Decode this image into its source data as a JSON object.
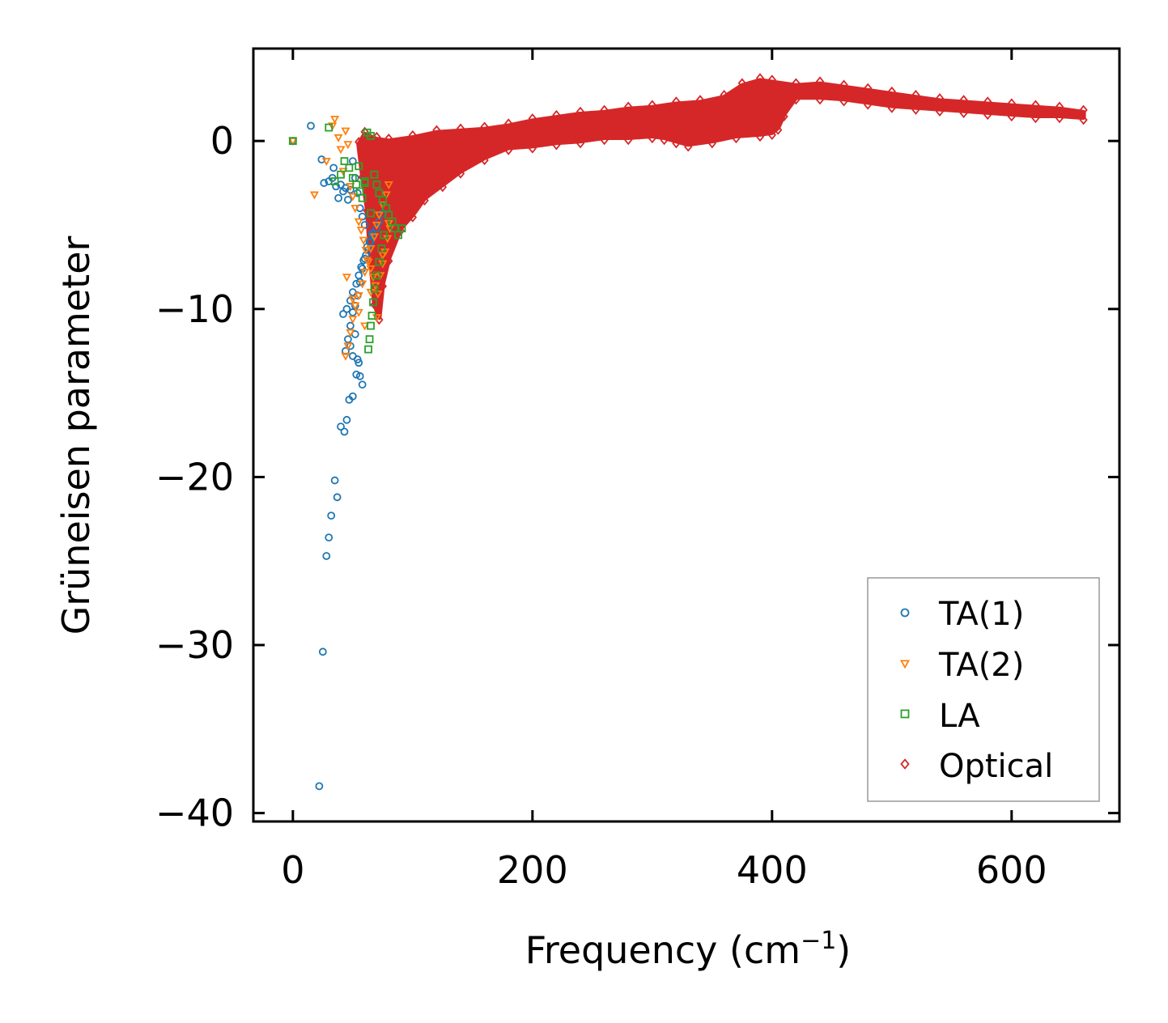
{
  "chart_data": {
    "type": "scatter",
    "title": "",
    "xlabel": "Frequency (cm",
    "xlabel_sup": "−1",
    "xlabel_end": ")",
    "ylabel": "Grüneisen parameter",
    "xlim": [
      -33,
      690
    ],
    "ylim": [
      -40.5,
      5.5
    ],
    "xticks": [
      0,
      200,
      400,
      600
    ],
    "xtick_labels": [
      "0",
      "200",
      "400",
      "600"
    ],
    "yticks": [
      0,
      -10,
      -20,
      -30,
      -40
    ],
    "ytick_labels": [
      "0",
      "−10",
      "−20",
      "−30",
      "−40"
    ],
    "legend_position": "lower-right",
    "series": [
      {
        "name": "TA(1)",
        "marker": "circle",
        "color": "#1f77b4",
        "x": [
          0,
          15,
          24,
          26,
          30,
          33,
          34,
          36,
          38,
          40,
          42,
          44,
          46,
          48,
          50,
          52,
          54,
          56,
          58,
          60,
          22,
          25,
          28,
          30,
          32,
          35,
          37,
          40,
          43,
          45,
          47,
          50,
          53,
          55,
          58,
          44,
          46,
          48,
          50,
          52,
          54,
          56,
          58,
          60,
          62,
          64,
          66,
          42,
          45,
          48,
          50,
          53,
          55,
          57,
          59,
          61,
          63,
          65,
          67,
          70,
          72,
          75,
          48,
          50,
          52,
          54,
          56
        ],
        "y": [
          0,
          0.9,
          -1.1,
          -2.5,
          -2.4,
          -2.2,
          -1.6,
          -2.7,
          -3.4,
          -2.6,
          -3.0,
          -2.8,
          -3.5,
          -2.9,
          -1.2,
          -2.2,
          -3.1,
          -4.0,
          -4.5,
          -5.0,
          -38.4,
          -30.4,
          -24.7,
          -23.6,
          -22.3,
          -20.2,
          -21.2,
          -17.0,
          -17.3,
          -16.6,
          -15.4,
          -15.2,
          -13.9,
          -13.2,
          -14.5,
          -12.5,
          -11.8,
          -11.0,
          -10.2,
          -9.8,
          -9.2,
          -8.4,
          -7.6,
          -7.0,
          -6.3,
          -6.0,
          -5.5,
          -10.3,
          -10.0,
          -9.5,
          -9.0,
          -8.5,
          -8.0,
          -7.5,
          -7.1,
          -6.8,
          -6.5,
          -6.0,
          -5.6,
          -5.2,
          -4.8,
          -4.3,
          -12.2,
          -12.8,
          -11.5,
          -13.0,
          -14.0
        ]
      },
      {
        "name": "TA(2)",
        "marker": "triangle-down",
        "color": "#ff7f0e",
        "x": [
          0,
          18,
          28,
          33,
          35,
          38,
          40,
          42,
          44,
          46,
          48,
          50,
          52,
          55,
          57,
          59,
          61,
          63,
          65,
          67,
          69,
          71,
          73,
          75,
          77,
          79,
          81,
          44,
          46,
          48,
          50,
          52,
          55,
          58,
          60,
          62,
          65,
          68,
          70,
          72,
          75,
          78,
          80,
          45,
          50,
          55,
          60,
          65,
          70,
          75,
          80
        ],
        "y": [
          0,
          -3.2,
          -1.2,
          0.9,
          1.3,
          0.2,
          -0.5,
          -1.8,
          0.6,
          -0.2,
          -2.7,
          -3.3,
          -4.0,
          -4.8,
          -5.3,
          -5.9,
          -6.5,
          -7.2,
          -7.6,
          -8.1,
          -8.6,
          -9.1,
          -8.0,
          -7.3,
          -6.6,
          -5.8,
          -5.2,
          -12.8,
          -12.2,
          -11.4,
          -10.6,
          -9.8,
          -9.2,
          -8.5,
          -7.8,
          -7.1,
          -6.4,
          -5.7,
          -5.0,
          -4.4,
          -3.8,
          -3.2,
          -2.6,
          -8.1,
          -9.4,
          -10.2,
          -11.0,
          -9.0,
          -10.5,
          -6.8,
          -4.9
        ]
      },
      {
        "name": "LA",
        "marker": "square",
        "color": "#2ca02c",
        "x": [
          0,
          30,
          35,
          40,
          43,
          47,
          50,
          53,
          56,
          58,
          60,
          62,
          65,
          68,
          70,
          72,
          75,
          78,
          80,
          83,
          85,
          88,
          91,
          63,
          64,
          65,
          66,
          67,
          68,
          70,
          72,
          74,
          76,
          55,
          60,
          65
        ],
        "y": [
          0,
          0.8,
          -2.4,
          -2.0,
          -1.2,
          -1.6,
          -2.2,
          -2.6,
          -3.0,
          -3.4,
          -2.5,
          0.5,
          -4.3,
          -2.0,
          -2.6,
          -3.1,
          -3.5,
          -4.0,
          -4.4,
          -4.8,
          -5.2,
          -5.6,
          -5.2,
          -12.4,
          -11.8,
          -11.0,
          -10.4,
          -9.6,
          -8.8,
          -8.0,
          -7.2,
          -6.4,
          -5.6,
          -1.5,
          -2.4,
          0.3
        ]
      }
    ],
    "optical_series": {
      "name": "Optical",
      "marker": "diamond",
      "color": "#d62728",
      "upper_envelope": [
        [
          55,
          -0.2
        ],
        [
          60,
          0.4
        ],
        [
          70,
          0.1
        ],
        [
          80,
          0.0
        ],
        [
          100,
          0.2
        ],
        [
          120,
          0.5
        ],
        [
          140,
          0.6
        ],
        [
          160,
          0.7
        ],
        [
          180,
          0.9
        ],
        [
          200,
          1.2
        ],
        [
          220,
          1.4
        ],
        [
          240,
          1.6
        ],
        [
          260,
          1.7
        ],
        [
          280,
          1.9
        ],
        [
          300,
          2.0
        ],
        [
          320,
          2.2
        ],
        [
          340,
          2.3
        ],
        [
          360,
          2.6
        ],
        [
          375,
          3.3
        ],
        [
          390,
          3.6
        ],
        [
          400,
          3.5
        ],
        [
          420,
          3.3
        ],
        [
          440,
          3.4
        ],
        [
          460,
          3.2
        ],
        [
          480,
          3.0
        ],
        [
          500,
          2.8
        ],
        [
          520,
          2.6
        ],
        [
          540,
          2.4
        ],
        [
          560,
          2.3
        ],
        [
          580,
          2.2
        ],
        [
          600,
          2.1
        ],
        [
          620,
          2.0
        ],
        [
          640,
          1.9
        ],
        [
          660,
          1.7
        ]
      ],
      "lower_envelope": [
        [
          660,
          1.4
        ],
        [
          640,
          1.5
        ],
        [
          620,
          1.5
        ],
        [
          600,
          1.6
        ],
        [
          580,
          1.7
        ],
        [
          560,
          1.8
        ],
        [
          540,
          1.9
        ],
        [
          520,
          2.0
        ],
        [
          500,
          2.1
        ],
        [
          480,
          2.3
        ],
        [
          460,
          2.5
        ],
        [
          440,
          2.6
        ],
        [
          420,
          2.6
        ],
        [
          410,
          1.6
        ],
        [
          405,
          0.8
        ],
        [
          400,
          0.5
        ],
        [
          390,
          0.4
        ],
        [
          370,
          0.3
        ],
        [
          350,
          0.0
        ],
        [
          330,
          -0.2
        ],
        [
          320,
          0.0
        ],
        [
          310,
          0.2
        ],
        [
          300,
          0.3
        ],
        [
          280,
          0.2
        ],
        [
          260,
          0.2
        ],
        [
          240,
          0.0
        ],
        [
          220,
          -0.1
        ],
        [
          200,
          -0.3
        ],
        [
          180,
          -0.4
        ],
        [
          160,
          -1.0
        ],
        [
          140,
          -1.8
        ],
        [
          125,
          -2.6
        ],
        [
          110,
          -3.4
        ],
        [
          100,
          -4.4
        ],
        [
          90,
          -5.2
        ],
        [
          80,
          -7.0
        ],
        [
          75,
          -8.5
        ],
        [
          72,
          -10.5
        ],
        [
          68,
          -9.6
        ],
        [
          65,
          -7.0
        ],
        [
          62,
          -4.0
        ],
        [
          58,
          -2.0
        ]
      ]
    }
  }
}
